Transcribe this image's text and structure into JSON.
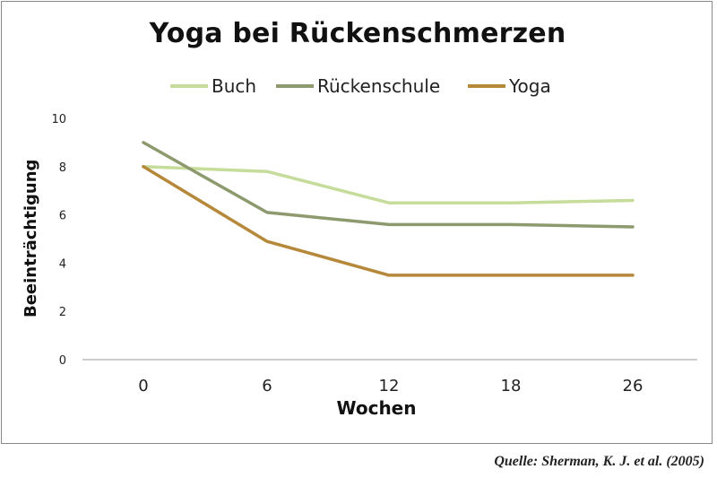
{
  "chart_data": {
    "type": "line",
    "title": "Yoga bei Rückenschmerzen",
    "xlabel": "Wochen",
    "ylabel": "Beeinträchtigung",
    "categories": [
      "0",
      "6",
      "12",
      "18",
      "26"
    ],
    "ylim": [
      0,
      10
    ],
    "yticks": [
      0,
      2,
      4,
      6,
      8,
      10
    ],
    "grid": false,
    "legend": "top",
    "series": [
      {
        "name": "Buch",
        "color": "#c6dc9a",
        "values": [
          8.0,
          7.8,
          6.5,
          6.5,
          6.6
        ]
      },
      {
        "name": "Rückenschule",
        "color": "#8c9a6e",
        "values": [
          9.0,
          6.1,
          5.6,
          5.6,
          5.5
        ]
      },
      {
        "name": "Yoga",
        "color": "#b5883a",
        "values": [
          8.0,
          4.9,
          3.5,
          3.5,
          3.5
        ]
      }
    ]
  },
  "source": "Quelle: Sherman, K. J. et al. (2005)"
}
